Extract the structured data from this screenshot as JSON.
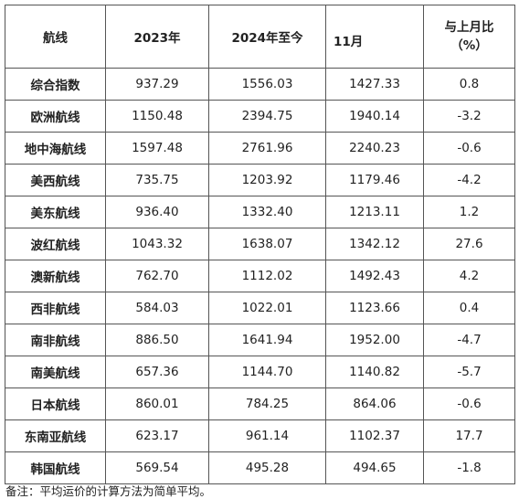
{
  "table": {
    "headers": {
      "route": "航线",
      "y2023": "2023年",
      "ytd2024": "2024年至今",
      "month": "11月",
      "change_line1": "与上月比",
      "change_line2": "（%）"
    },
    "rows": [
      {
        "route": "综合指数",
        "y2023": "937.29",
        "ytd2024": "1556.03",
        "month": "1427.33",
        "change": "0.8"
      },
      {
        "route": "欧洲航线",
        "y2023": "1150.48",
        "ytd2024": "2394.75",
        "month": "1940.14",
        "change": "-3.2"
      },
      {
        "route": "地中海航线",
        "y2023": "1597.48",
        "ytd2024": "2761.96",
        "month": "2240.23",
        "change": "-0.6"
      },
      {
        "route": "美西航线",
        "y2023": "735.75",
        "ytd2024": "1203.92",
        "month": "1179.46",
        "change": "-4.2"
      },
      {
        "route": "美东航线",
        "y2023": "936.40",
        "ytd2024": "1332.40",
        "month": "1213.11",
        "change": "1.2"
      },
      {
        "route": "波红航线",
        "y2023": "1043.32",
        "ytd2024": "1638.07",
        "month": "1342.12",
        "change": "27.6"
      },
      {
        "route": "澳新航线",
        "y2023": "762.70",
        "ytd2024": "1112.02",
        "month": "1492.43",
        "change": "4.2"
      },
      {
        "route": "西非航线",
        "y2023": "584.03",
        "ytd2024": "1022.01",
        "month": "1123.66",
        "change": "0.4"
      },
      {
        "route": "南非航线",
        "y2023": "886.50",
        "ytd2024": "1641.94",
        "month": "1952.00",
        "change": "-4.7"
      },
      {
        "route": "南美航线",
        "y2023": "657.36",
        "ytd2024": "1144.70",
        "month": "1140.82",
        "change": "-5.7"
      },
      {
        "route": "日本航线",
        "y2023": "860.01",
        "ytd2024": "784.25",
        "month": "864.06",
        "change": "-0.6"
      },
      {
        "route": "东南亚航线",
        "y2023": "623.17",
        "ytd2024": "961.14",
        "month": "1102.37",
        "change": "17.7"
      },
      {
        "route": "韩国航线",
        "y2023": "569.54",
        "ytd2024": "495.28",
        "month": "494.65",
        "change": "-1.8"
      }
    ]
  },
  "note": "备注：平均运价的计算方法为简单平均。"
}
